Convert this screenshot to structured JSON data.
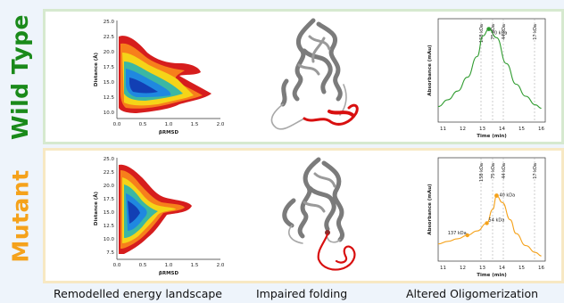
{
  "rows": {
    "wild_type": {
      "label": "Wild Type",
      "color": "#1a8a1a"
    },
    "mutant": {
      "label": "Mutant",
      "color": "#f5a21b"
    }
  },
  "captions": {
    "energy": "Remodelled energy landscape",
    "folding": "Impaired folding",
    "oligo": "Altered Oligomerization"
  },
  "landscape": {
    "xlabel": "βRMSD",
    "ylabel": "Distance (Å)",
    "xticks": [
      "0.0",
      "0.5",
      "1.0",
      "1.5",
      "2.0"
    ],
    "yticks": [
      "25.0",
      "22.5",
      "20.0",
      "17.5",
      "15.0",
      "12.5",
      "10.0"
    ],
    "mutant_yticks": [
      "25.0",
      "22.5",
      "20.0",
      "17.5",
      "15.0",
      "12.5",
      "10.0",
      "7.5"
    ]
  },
  "sec": {
    "xlabel": "Time (min)",
    "ylabel": "Absorbance (mAu)",
    "xticks": [
      "11",
      "12",
      "13",
      "14",
      "15",
      "16"
    ],
    "wild_type": {
      "peaks": [
        "70 kDa"
      ],
      "markers": [
        "158 kDa",
        "75 kDa",
        "44 kDa",
        "17 kDa"
      ],
      "line_color": "#2f9b2f"
    },
    "mutant": {
      "peaks": [
        "137 kDa",
        "54 kDa",
        "40 kDa"
      ],
      "markers": [
        "158 kDa",
        "75 kDa",
        "44 kDa",
        "17 kDa"
      ],
      "line_color": "#f5a21b"
    }
  },
  "chart_data": [
    {
      "type": "line",
      "name": "wild-type-sec",
      "xlabel": "Time (min)",
      "ylabel": "Absorbance (mAu)",
      "xlim": [
        11,
        16.5
      ],
      "ylim": [
        0,
        6
      ],
      "x": [
        11,
        11.5,
        12,
        12.5,
        13,
        13.3,
        13.6,
        14,
        14.5,
        15,
        15.5,
        16,
        16.3
      ],
      "series": [
        {
          "values": [
            0.9,
            1.3,
            1.8,
            2.6,
            3.8,
            5.0,
            5.4,
            4.9,
            3.4,
            2.2,
            1.5,
            1.0,
            0.8
          ]
        }
      ]
    },
    {
      "type": "line",
      "name": "mutant-sec",
      "xlabel": "Time (min)",
      "ylabel": "Absorbance (mAu)",
      "xlim": [
        11,
        16.5
      ],
      "ylim": [
        0,
        6
      ],
      "x": [
        11,
        11.5,
        12,
        12.5,
        13,
        13.5,
        13.8,
        14,
        14.3,
        14.7,
        15,
        15.5,
        16,
        16.3
      ],
      "series": [
        {
          "values": [
            1.0,
            1.15,
            1.3,
            1.5,
            1.75,
            2.2,
            3.0,
            3.8,
            3.4,
            2.4,
            1.6,
            0.9,
            0.5,
            0.3
          ]
        }
      ]
    }
  ]
}
